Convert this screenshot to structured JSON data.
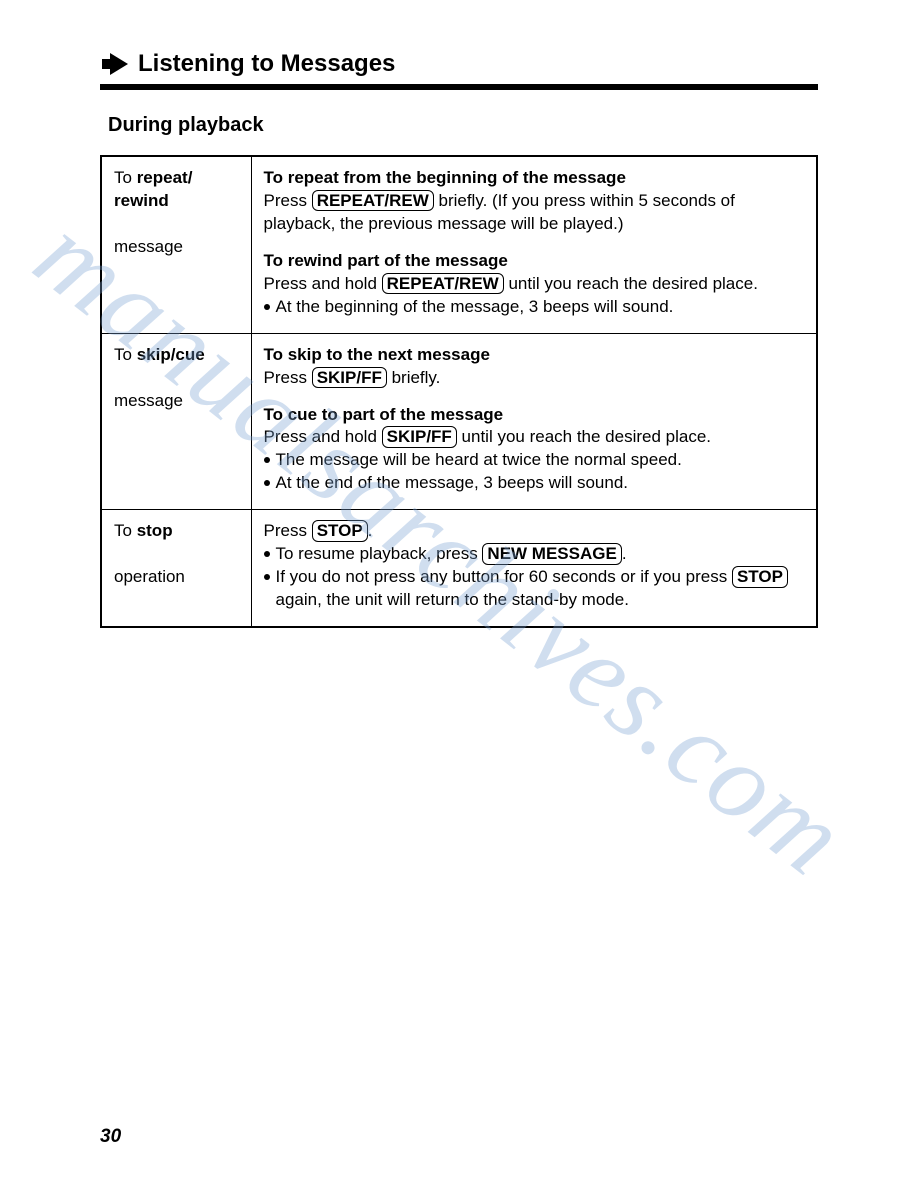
{
  "header": {
    "title": "Listening to Messages"
  },
  "subheading": "During playback",
  "watermark": "manualsarchives.com",
  "page_number": "30",
  "buttons": {
    "repeat_rew": "REPEAT/REW",
    "skip_ff": "SKIP/FF",
    "stop": "STOP",
    "new_message": "NEW MESSAGE"
  },
  "rows": [
    {
      "left_pre": "To ",
      "left_bold": "repeat/\nrewind",
      "left_post": "\nmessage",
      "blocks": [
        {
          "title": "To repeat from the beginning of the message",
          "line1_pre": "Press ",
          "line1_btn": "repeat_rew",
          "line1_post": " briefly. (If you press within 5 seconds of playback, the previous message will be played.)",
          "bullets": []
        },
        {
          "title": "To rewind part of the message",
          "line1_pre": "Press and hold ",
          "line1_btn": "repeat_rew",
          "line1_post": " until you reach the desired place.",
          "bullets": [
            {
              "text": "At the beginning of the message, 3 beeps will sound."
            }
          ]
        }
      ]
    },
    {
      "left_pre": "To ",
      "left_bold": "skip/cue",
      "left_post": "\nmessage",
      "blocks": [
        {
          "title": "To skip to the next message",
          "line1_pre": "Press ",
          "line1_btn": "skip_ff",
          "line1_post": " briefly.",
          "bullets": []
        },
        {
          "title": "To cue to part of the message",
          "line1_pre": "Press and hold ",
          "line1_btn": "skip_ff",
          "line1_post": " until you reach the desired place.",
          "bullets": [
            {
              "text": "The message will be heard at twice the normal speed."
            },
            {
              "text": "At the end of the message, 3 beeps will sound."
            }
          ]
        }
      ]
    },
    {
      "left_pre": "To ",
      "left_bold": "stop",
      "left_post": "\noperation",
      "blocks": [
        {
          "title": "",
          "line1_pre": "Press ",
          "line1_btn": "stop",
          "line1_post": ".",
          "bullets": [
            {
              "pre": "To resume playback, press ",
              "btn": "new_message",
              "post": "."
            },
            {
              "pre": "If you do not press any button for 60 seconds or if you press ",
              "btn": "stop",
              "post": " again, the unit will return to the stand-by mode."
            }
          ]
        }
      ]
    }
  ]
}
